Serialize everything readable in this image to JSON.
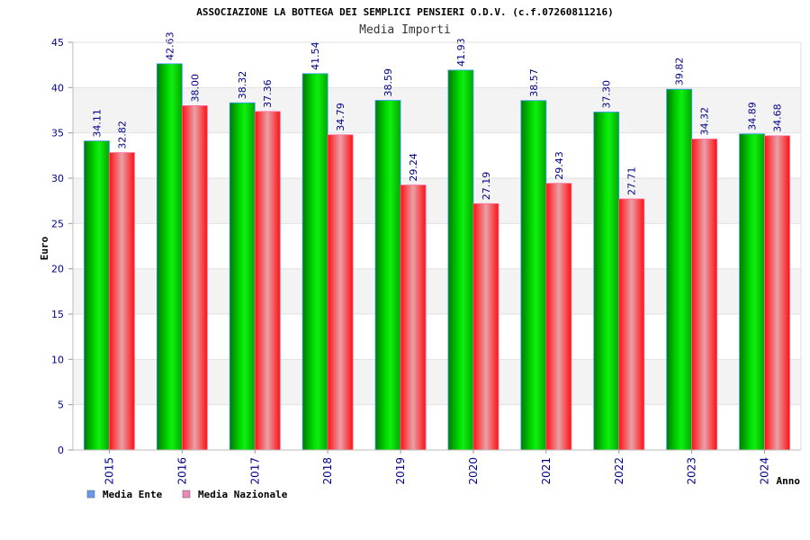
{
  "chart_data": {
    "type": "bar",
    "title": "ASSOCIAZIONE LA BOTTEGA DEI SEMPLICI PENSIERI O.D.V. (c.f.07260811216)",
    "subtitle": "Media Importi",
    "xlabel": "Anno",
    "ylabel": "Euro",
    "ylim": [
      0,
      45
    ],
    "yticks": [
      "0",
      "5",
      "10",
      "15",
      "20",
      "25",
      "30",
      "35",
      "40",
      "45"
    ],
    "categories": [
      "2015",
      "2016",
      "2017",
      "2018",
      "2019",
      "2020",
      "2021",
      "2022",
      "2023",
      "2024"
    ],
    "series": [
      {
        "name": "Media Ente",
        "values": [
          34.11,
          42.63,
          38.32,
          41.54,
          38.59,
          41.93,
          38.57,
          37.3,
          39.82,
          34.89
        ],
        "labels": [
          "34.11",
          "42.63",
          "38.32",
          "41.54",
          "38.59",
          "41.93",
          "38.57",
          "37.30",
          "39.82",
          "34.89"
        ],
        "color": "#00c000",
        "legend_color": "#6699ee"
      },
      {
        "name": "Media Nazionale",
        "values": [
          32.82,
          38.0,
          37.36,
          34.79,
          29.24,
          27.19,
          29.43,
          27.71,
          34.32,
          34.68
        ],
        "labels": [
          "32.82",
          "38.00",
          "37.36",
          "34.79",
          "29.24",
          "27.19",
          "29.43",
          "27.71",
          "34.32",
          "34.68"
        ],
        "color": "#ff2020",
        "legend_color": "#ee88bb"
      }
    ],
    "grid": true,
    "legend": "bottom-left"
  }
}
